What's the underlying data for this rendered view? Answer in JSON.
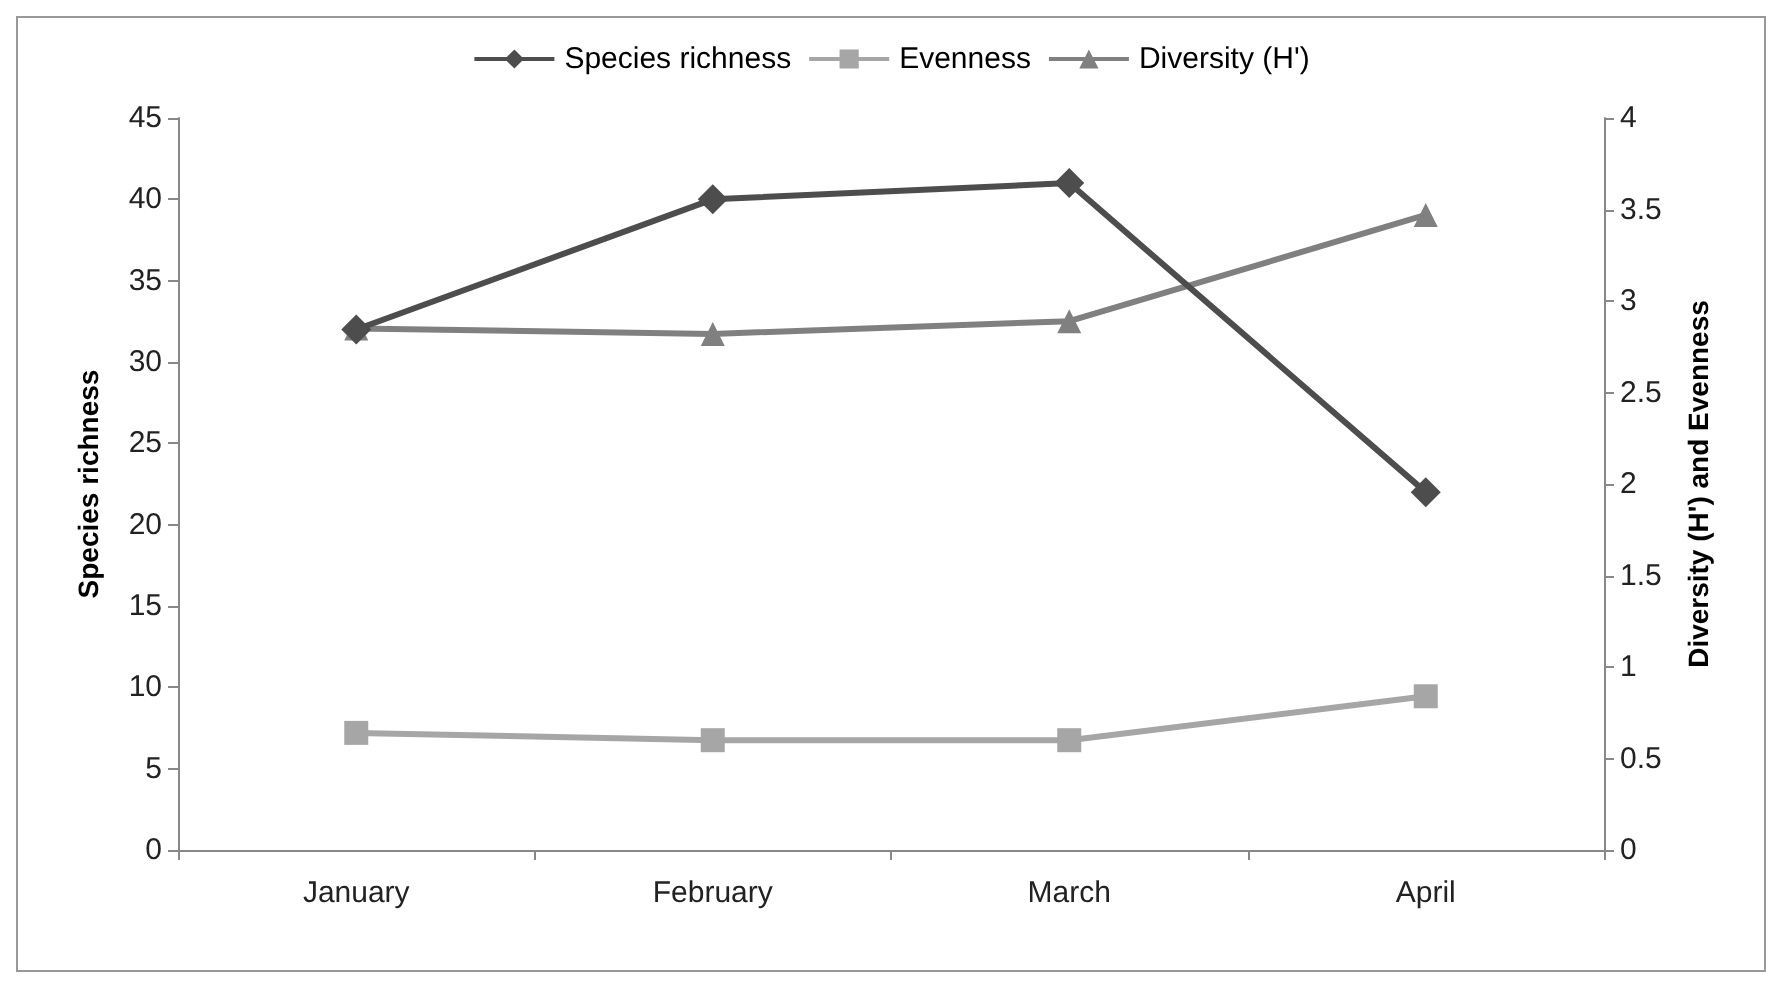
{
  "chart_data": {
    "type": "line",
    "categories": [
      "January",
      "February",
      "March",
      "April"
    ],
    "ylabel": "Species richness",
    "y2label": "Diversity (H') and Evenness",
    "ylim": [
      0,
      45
    ],
    "yticks": [
      0,
      5,
      10,
      15,
      20,
      25,
      30,
      35,
      40,
      45
    ],
    "y2lim": [
      0,
      4
    ],
    "y2ticks": [
      0,
      0.5,
      1,
      1.5,
      2,
      2.5,
      3,
      3.5,
      4
    ],
    "grid": false,
    "legend": "top",
    "series": [
      {
        "name": "Species richness",
        "color": "#4d4d4d",
        "marker": "diamond",
        "values": [
          32,
          40,
          41,
          22
        ]
      },
      {
        "name": "Evenness",
        "color": "#a6a6a6",
        "marker": "square",
        "axis": "y2",
        "values": [
          0.64,
          0.6,
          0.6,
          0.84
        ]
      },
      {
        "name": "Diversity (H')",
        "color": "#808080",
        "marker": "triangle",
        "axis": "y2",
        "values": [
          2.85,
          2.82,
          2.89,
          3.47
        ]
      }
    ]
  }
}
